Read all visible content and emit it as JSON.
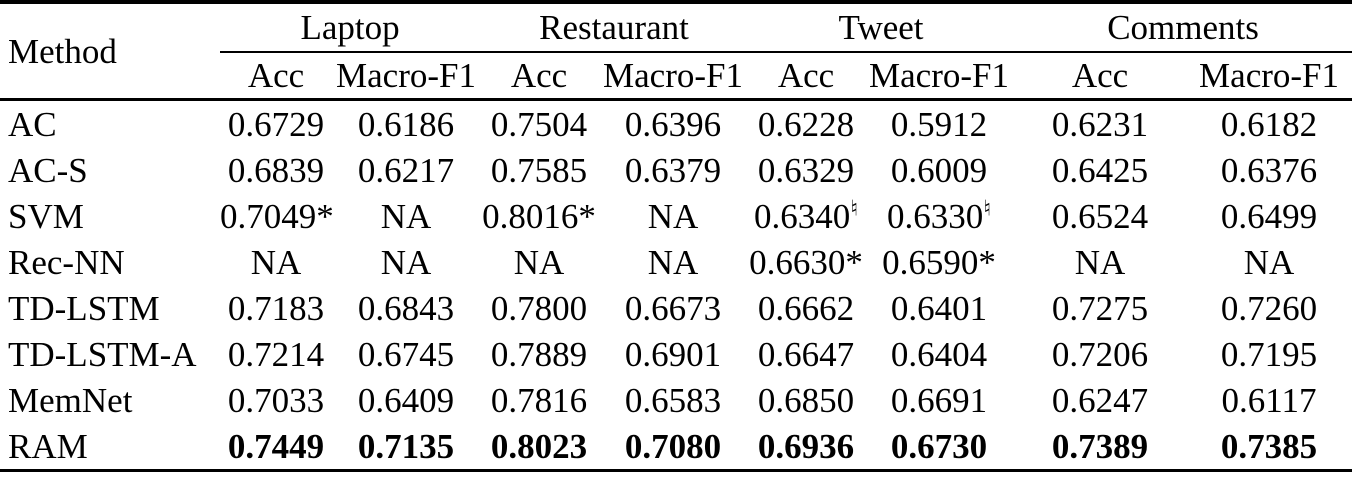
{
  "table": {
    "header": {
      "method_label": "Method",
      "groups": [
        {
          "label": "Laptop",
          "cols": [
            "Acc",
            "Macro-F1"
          ]
        },
        {
          "label": "Restaurant",
          "cols": [
            "Acc",
            "Macro-F1"
          ]
        },
        {
          "label": "Tweet",
          "cols": [
            "Acc",
            "Macro-F1"
          ]
        },
        {
          "label": "Comments",
          "cols": [
            "Acc",
            "Macro-F1"
          ]
        }
      ]
    },
    "rows": [
      {
        "method": "AC",
        "bold": false,
        "cells": [
          {
            "v": "0.6729"
          },
          {
            "v": "0.6186"
          },
          {
            "v": "0.7504"
          },
          {
            "v": "0.6396"
          },
          {
            "v": "0.6228"
          },
          {
            "v": "0.5912"
          },
          {
            "v": "0.6231"
          },
          {
            "v": "0.6182"
          }
        ]
      },
      {
        "method": "AC-S",
        "bold": false,
        "cells": [
          {
            "v": "0.6839"
          },
          {
            "v": "0.6217"
          },
          {
            "v": "0.7585"
          },
          {
            "v": "0.6379"
          },
          {
            "v": "0.6329"
          },
          {
            "v": "0.6009"
          },
          {
            "v": "0.6425"
          },
          {
            "v": "0.6376"
          }
        ]
      },
      {
        "method": "SVM",
        "bold": false,
        "cells": [
          {
            "v": "0.7049*"
          },
          {
            "v": "NA"
          },
          {
            "v": "0.8016*"
          },
          {
            "v": "NA"
          },
          {
            "v": "0.6340",
            "sup": "♮"
          },
          {
            "v": "0.6330",
            "sup": "♮"
          },
          {
            "v": "0.6524"
          },
          {
            "v": "0.6499"
          }
        ]
      },
      {
        "method": "Rec-NN",
        "bold": false,
        "cells": [
          {
            "v": "NA"
          },
          {
            "v": "NA"
          },
          {
            "v": "NA"
          },
          {
            "v": "NA"
          },
          {
            "v": "0.6630*"
          },
          {
            "v": "0.6590*"
          },
          {
            "v": "NA"
          },
          {
            "v": "NA"
          }
        ]
      },
      {
        "method": "TD-LSTM",
        "bold": false,
        "cells": [
          {
            "v": "0.7183"
          },
          {
            "v": "0.6843"
          },
          {
            "v": "0.7800"
          },
          {
            "v": "0.6673"
          },
          {
            "v": "0.6662"
          },
          {
            "v": "0.6401"
          },
          {
            "v": "0.7275"
          },
          {
            "v": "0.7260"
          }
        ]
      },
      {
        "method": "TD-LSTM-A",
        "bold": false,
        "cells": [
          {
            "v": "0.7214"
          },
          {
            "v": "0.6745"
          },
          {
            "v": "0.7889"
          },
          {
            "v": "0.6901"
          },
          {
            "v": "0.6647"
          },
          {
            "v": "0.6404"
          },
          {
            "v": "0.7206"
          },
          {
            "v": "0.7195"
          }
        ]
      },
      {
        "method": "MemNet",
        "bold": false,
        "cells": [
          {
            "v": "0.7033"
          },
          {
            "v": "0.6409"
          },
          {
            "v": "0.7816"
          },
          {
            "v": "0.6583"
          },
          {
            "v": "0.6850"
          },
          {
            "v": "0.6691"
          },
          {
            "v": "0.6247"
          },
          {
            "v": "0.6117"
          }
        ]
      },
      {
        "method": "RAM",
        "bold": true,
        "cells": [
          {
            "v": "0.7449"
          },
          {
            "v": "0.7135"
          },
          {
            "v": "0.8023"
          },
          {
            "v": "0.7080"
          },
          {
            "v": "0.6936"
          },
          {
            "v": "0.6730"
          },
          {
            "v": "0.7389"
          },
          {
            "v": "0.7385"
          }
        ]
      }
    ]
  },
  "colors": {
    "rule": "#000000",
    "text": "#000000",
    "background": "#ffffff"
  }
}
